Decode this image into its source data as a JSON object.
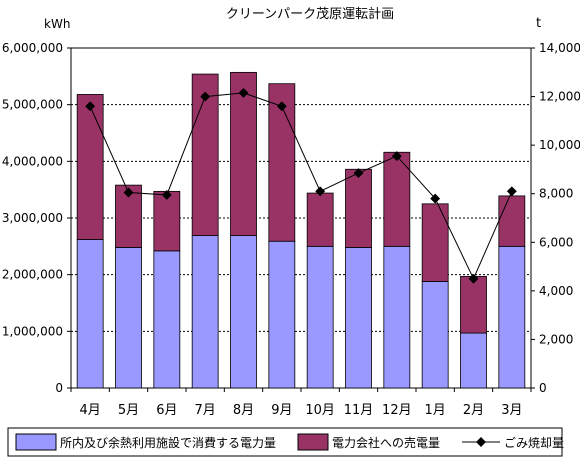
{
  "chart_data": {
    "type": "bar",
    "title": "クリーンパーク茂原運転計画",
    "y_left_unit": "kWh",
    "y_right_unit": "t",
    "categories": [
      "4月",
      "5月",
      "6月",
      "7月",
      "8月",
      "9月",
      "10月",
      "11月",
      "12月",
      "1月",
      "2月",
      "3月"
    ],
    "ylim_left": [
      0,
      6000000
    ],
    "yticks_left": [
      0,
      1000000,
      2000000,
      3000000,
      4000000,
      5000000,
      6000000
    ],
    "ytick_labels_left": [
      "0",
      "1,000,000",
      "2,000,000",
      "3,000,000",
      "4,000,000",
      "5,000,000",
      "6,000,000"
    ],
    "ylim_right": [
      0,
      14000
    ],
    "yticks_right": [
      0,
      2000,
      4000,
      6000,
      8000,
      10000,
      12000,
      14000
    ],
    "ytick_labels_right": [
      "0",
      "2,000",
      "4,000",
      "6,000",
      "8,000",
      "10,000",
      "12,000",
      "14,000"
    ],
    "grid": "horizontal dashed",
    "legend_position": "bottom",
    "stacked": true,
    "series": [
      {
        "name": "所内及び余熱利用施設で消費する電力量",
        "kind": "bar",
        "axis": "left",
        "color": "#9999ff",
        "values": [
          2620000,
          2480000,
          2420000,
          2690000,
          2690000,
          2590000,
          2500000,
          2480000,
          2500000,
          1880000,
          970000,
          2500000
        ]
      },
      {
        "name": "電力会社への売電量",
        "kind": "bar",
        "axis": "left",
        "color": "#993366",
        "values": [
          2560000,
          1100000,
          1050000,
          2850000,
          2880000,
          2780000,
          940000,
          1380000,
          1660000,
          1370000,
          1000000,
          890000
        ]
      },
      {
        "name": "ごみ焼却量",
        "kind": "line",
        "axis": "right",
        "color": "#000000",
        "values": [
          11600,
          8050,
          7950,
          12000,
          12150,
          11600,
          8100,
          8850,
          9550,
          7800,
          4500,
          8100
        ]
      }
    ]
  }
}
